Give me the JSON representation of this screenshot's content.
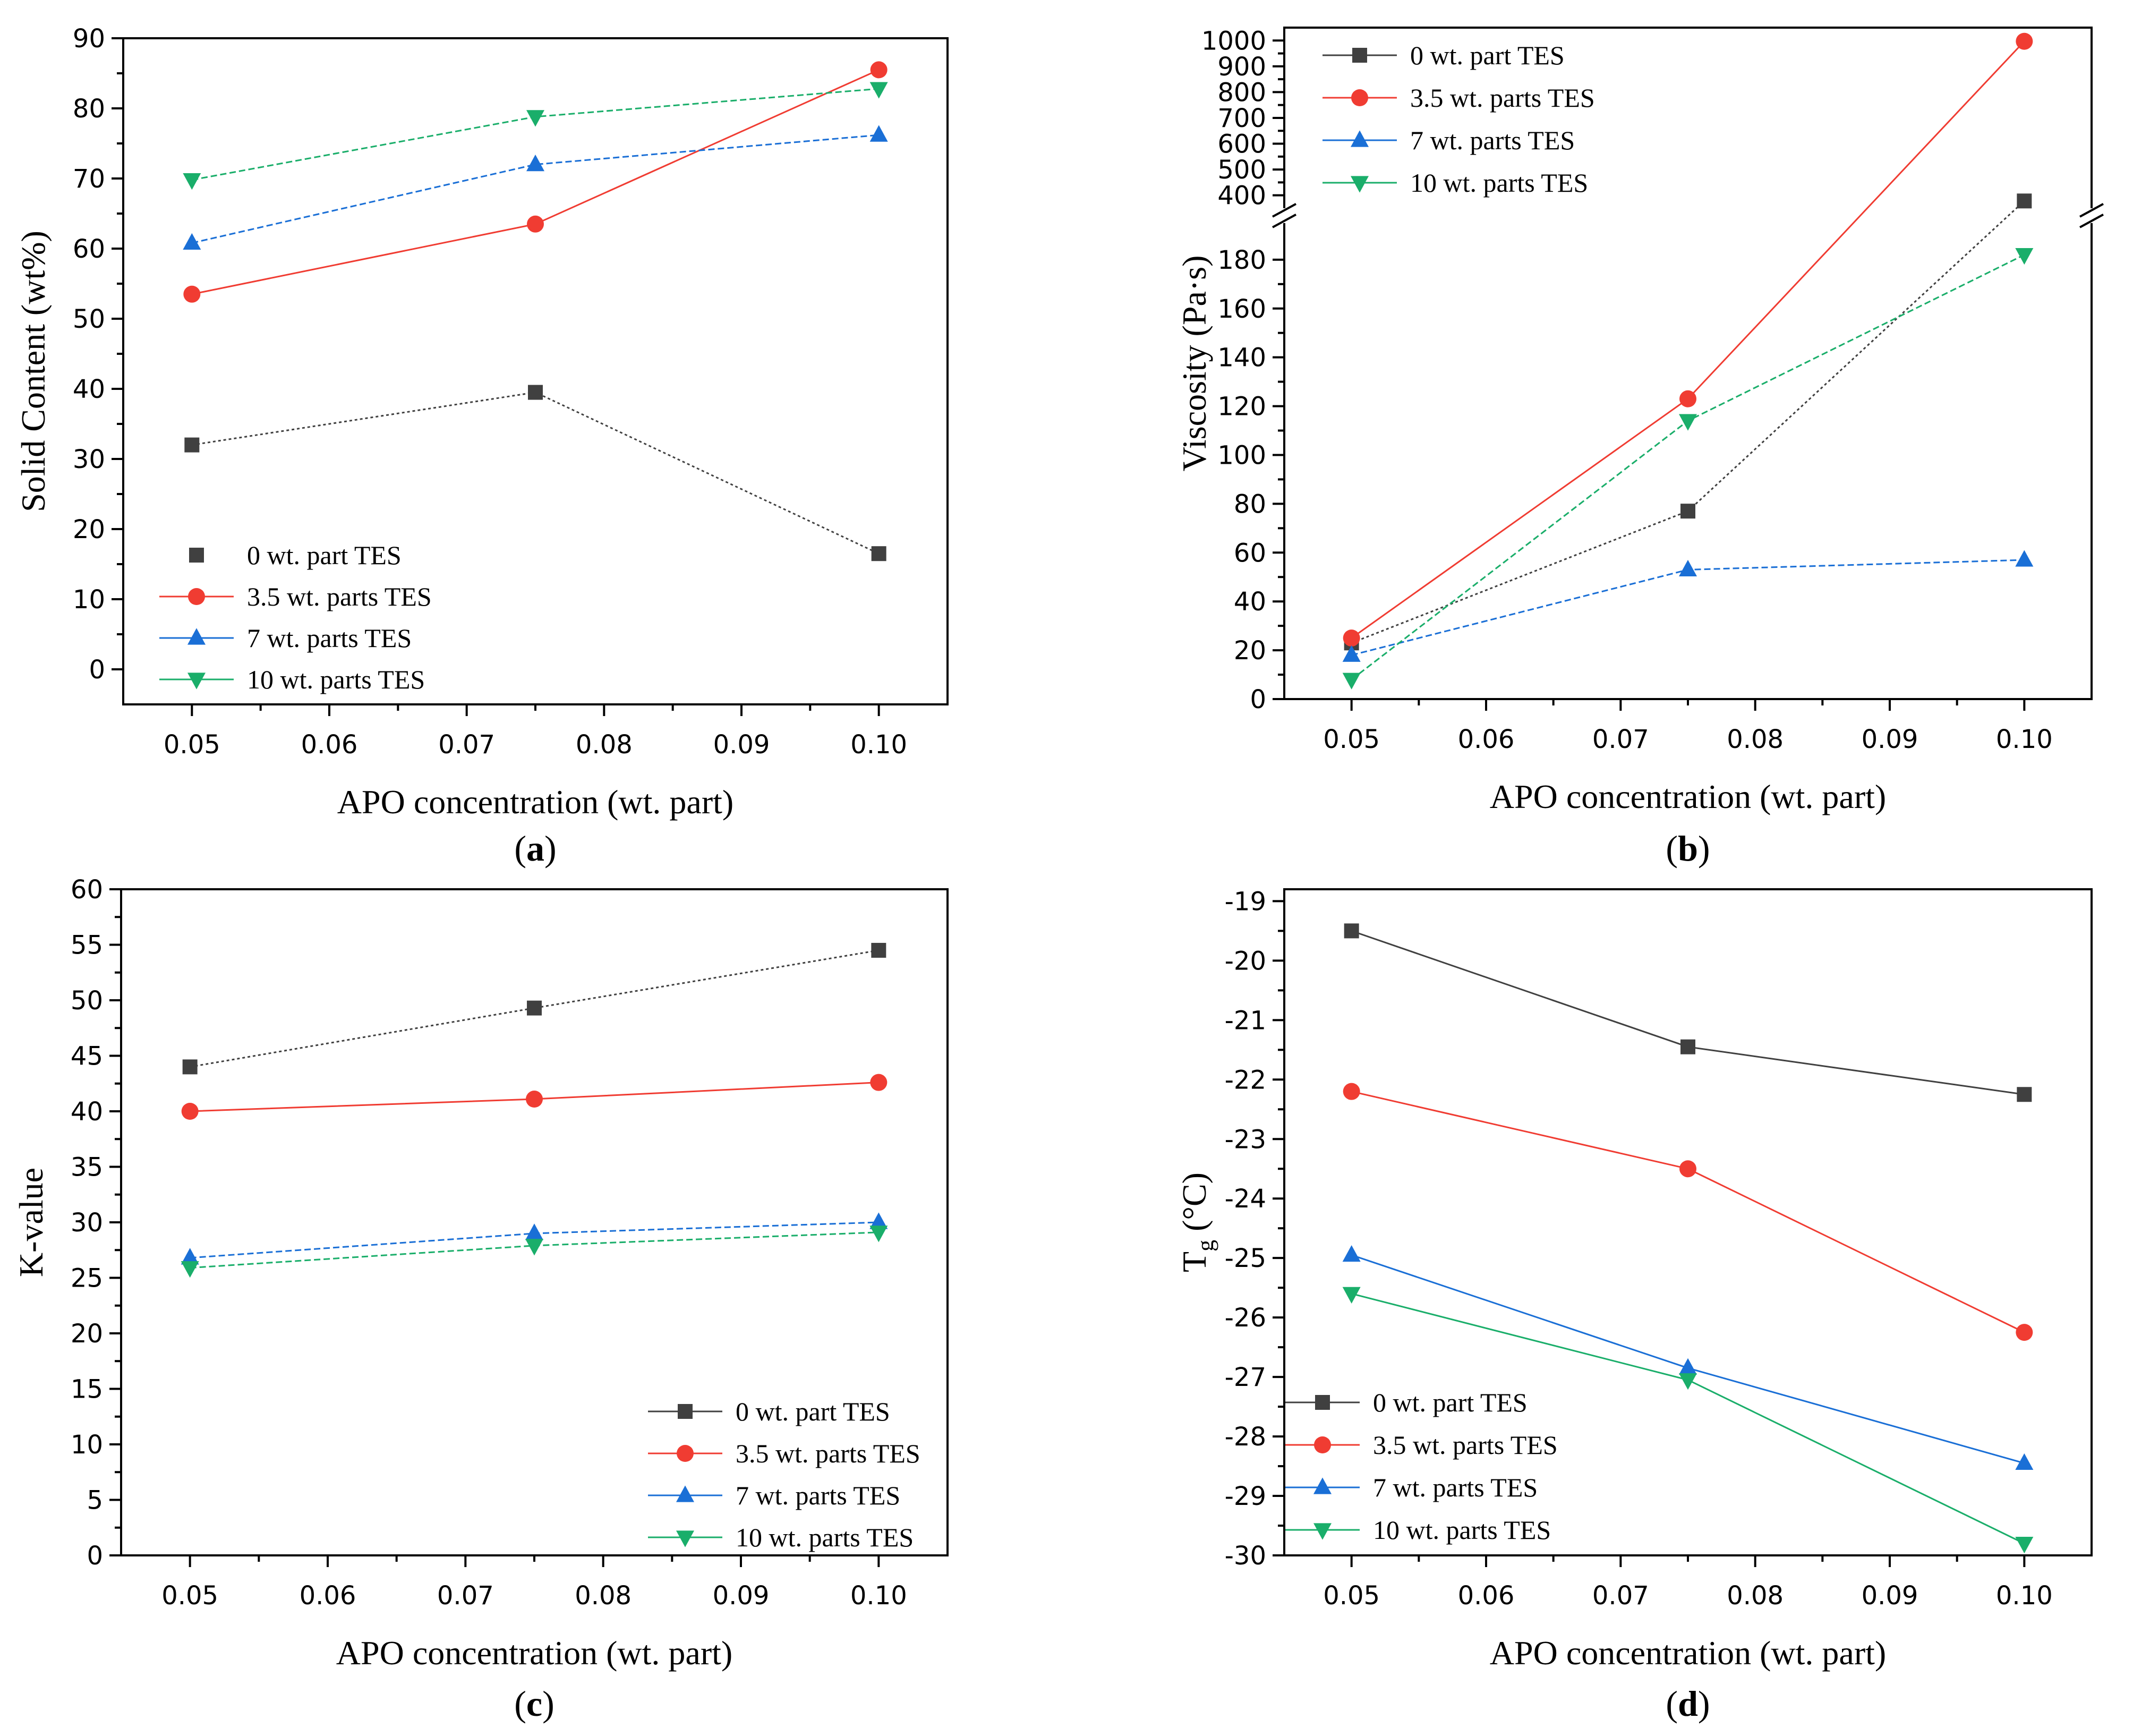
{
  "figure": {
    "panels": [
      "a",
      "b",
      "c",
      "d"
    ]
  },
  "series_styles": [
    {
      "name": "0 wt. part TES",
      "color": "#404040",
      "marker": "square"
    },
    {
      "name": "3.5 wt. parts TES",
      "color": "#f03c32",
      "marker": "circle"
    },
    {
      "name": "7 wt. parts TES",
      "color": "#1a6fd6",
      "marker": "triangle-up"
    },
    {
      "name": "10 wt. parts TES",
      "color": "#1aae6a",
      "marker": "triangle-down"
    }
  ],
  "chart_data": [
    {
      "id": "a",
      "panel_label": "a",
      "type": "line",
      "xlabel": "APO concentration (wt. part)",
      "ylabel": "Solid Content (wt%)",
      "xlim": [
        0.045,
        0.105
      ],
      "ylim": [
        -5,
        90
      ],
      "xticks": [
        0.05,
        0.06,
        0.07,
        0.08,
        0.09,
        0.1
      ],
      "xtick_labels": [
        "0.05",
        "0.06",
        "0.07",
        "0.08",
        "0.09",
        "0.10"
      ],
      "yticks": [
        0,
        10,
        20,
        30,
        40,
        50,
        60,
        70,
        80,
        90
      ],
      "ytick_labels": [
        "0",
        "10",
        "20",
        "30",
        "40",
        "50",
        "60",
        "70",
        "80",
        "90"
      ],
      "legend_position": "bottom-left",
      "x": [
        0.05,
        0.075,
        0.1
      ],
      "series": [
        {
          "name": "0 wt. part TES",
          "values": [
            32.0,
            39.5,
            16.5
          ]
        },
        {
          "name": "3.5 wt. parts TES",
          "values": [
            53.5,
            63.5,
            85.5
          ]
        },
        {
          "name": "7 wt. parts TES",
          "values": [
            60.8,
            72.0,
            76.2
          ]
        },
        {
          "name": "10 wt. parts TES",
          "values": [
            69.8,
            78.8,
            82.8
          ]
        }
      ]
    },
    {
      "id": "b",
      "panel_label": "b",
      "type": "line",
      "xlabel": "APO concentration (wt. part)",
      "ylabel": "Viscosity (Pa·s)",
      "xlim": [
        0.045,
        0.105
      ],
      "ylim": [
        0,
        1050
      ],
      "axis_break": {
        "lower": [
          0,
          195
        ],
        "upper": [
          350,
          1050
        ]
      },
      "xticks": [
        0.05,
        0.06,
        0.07,
        0.08,
        0.09,
        0.1
      ],
      "xtick_labels": [
        "0.05",
        "0.06",
        "0.07",
        "0.08",
        "0.09",
        "0.10"
      ],
      "yticks": [
        0,
        20,
        40,
        60,
        80,
        100,
        120,
        140,
        160,
        180,
        400,
        500,
        600,
        700,
        800,
        900,
        1000
      ],
      "ytick_labels": [
        "0",
        "20",
        "40",
        "60",
        "80",
        "100",
        "120",
        "140",
        "160",
        "180",
        "400",
        "500",
        "600",
        "700",
        "800",
        "900",
        "1000"
      ],
      "legend_position": "top-left",
      "x": [
        0.05,
        0.075,
        0.1
      ],
      "series": [
        {
          "name": "0 wt. part TES",
          "values": [
            23,
            77,
            378
          ]
        },
        {
          "name": "3.5 wt. parts TES",
          "values": [
            25,
            123,
            997
          ]
        },
        {
          "name": "7 wt. parts TES",
          "values": [
            18,
            53,
            57
          ]
        },
        {
          "name": "10 wt. parts TES",
          "values": [
            8,
            114,
            182
          ]
        }
      ]
    },
    {
      "id": "c",
      "panel_label": "c",
      "type": "line",
      "xlabel": "APO concentration (wt. part)",
      "ylabel": "K-value",
      "xlim": [
        0.045,
        0.105
      ],
      "ylim": [
        0,
        60
      ],
      "xticks": [
        0.05,
        0.06,
        0.07,
        0.08,
        0.09,
        0.1
      ],
      "xtick_labels": [
        "0.05",
        "0.06",
        "0.07",
        "0.08",
        "0.09",
        "0.10"
      ],
      "yticks": [
        0,
        5,
        10,
        15,
        20,
        25,
        30,
        35,
        40,
        45,
        50,
        55,
        60
      ],
      "ytick_labels": [
        "0",
        "5",
        "10",
        "15",
        "20",
        "25",
        "30",
        "35",
        "40",
        "45",
        "50",
        "55",
        "60"
      ],
      "legend_position": "bottom-right",
      "x": [
        0.05,
        0.075,
        0.1
      ],
      "series": [
        {
          "name": "0 wt. part TES",
          "values": [
            44.0,
            49.3,
            54.5
          ]
        },
        {
          "name": "3.5 wt. parts TES",
          "values": [
            40.0,
            41.1,
            42.6
          ]
        },
        {
          "name": "7 wt. parts TES",
          "values": [
            26.8,
            29.0,
            30.0
          ]
        },
        {
          "name": "10 wt. parts TES",
          "values": [
            25.9,
            27.9,
            29.1
          ]
        }
      ]
    },
    {
      "id": "d",
      "panel_label": "d",
      "type": "line",
      "xlabel": "APO concentration (wt. part)",
      "ylabel": "T",
      "ylabel_subscript": "g",
      "ylabel_suffix": " (°C)",
      "xlim": [
        0.045,
        0.105
      ],
      "ylim": [
        -30,
        -18.8
      ],
      "xticks": [
        0.05,
        0.06,
        0.07,
        0.08,
        0.09,
        0.1
      ],
      "xtick_labels": [
        "0.05",
        "0.06",
        "0.07",
        "0.08",
        "0.09",
        "0.10"
      ],
      "yticks": [
        -30,
        -29,
        -28,
        -27,
        -26,
        -25,
        -24,
        -23,
        -22,
        -21,
        -20,
        -19
      ],
      "ytick_labels": [
        "-30",
        "-29",
        "-28",
        "-27",
        "-26",
        "-25",
        "-24",
        "-23",
        "-22",
        "-21",
        "-20",
        "-19"
      ],
      "legend_position": "bottom-left",
      "x": [
        0.05,
        0.075,
        0.1
      ],
      "series": [
        {
          "name": "0 wt. part TES",
          "values": [
            -19.5,
            -21.45,
            -22.25
          ]
        },
        {
          "name": "3.5 wt. parts TES",
          "values": [
            -22.2,
            -23.5,
            -26.25
          ]
        },
        {
          "name": "7 wt. parts TES",
          "values": [
            -24.95,
            -26.85,
            -28.45
          ]
        },
        {
          "name": "10 wt. parts TES",
          "values": [
            -25.6,
            -27.05,
            -29.8
          ]
        }
      ]
    }
  ]
}
